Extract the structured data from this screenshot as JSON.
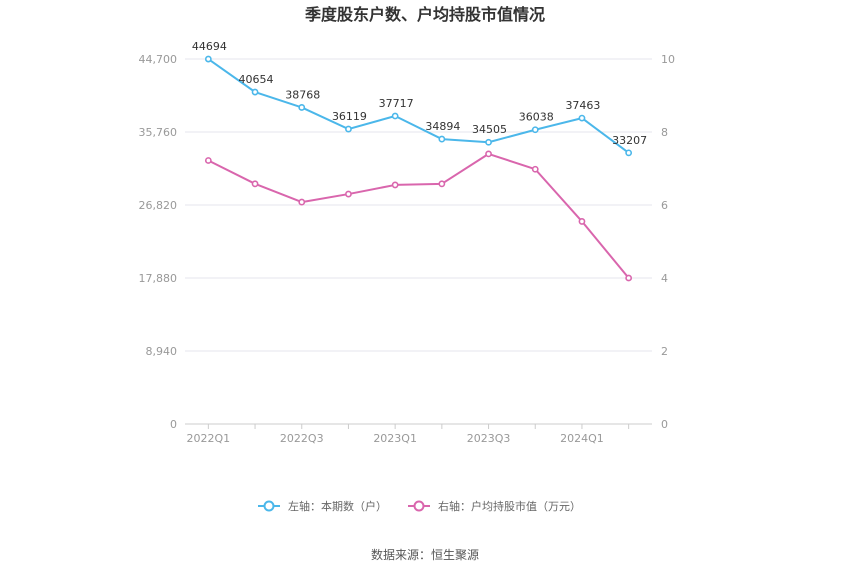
{
  "chart_data": {
    "type": "line",
    "title": "季度股东户数、户均持股市值情况",
    "categories": [
      "2022Q1",
      "2022Q2",
      "2022Q3",
      "2022Q4",
      "2023Q1",
      "2023Q2",
      "2023Q3",
      "2023Q4",
      "2024Q1",
      "2024Q2"
    ],
    "x_tick_labels": [
      "2022Q1",
      "2022Q3",
      "2023Q1",
      "2023Q3",
      "2024Q1"
    ],
    "left_axis": {
      "min": 0,
      "max": 44700,
      "ticks": [
        "0",
        "8,940",
        "17,880",
        "26,820",
        "35,760",
        "44,700"
      ]
    },
    "right_axis": {
      "min": 0,
      "max": 10,
      "ticks": [
        "0",
        "2",
        "4",
        "6",
        "8",
        "10"
      ]
    },
    "series": [
      {
        "name": "左轴：本期数（户）",
        "axis": "left",
        "color": "#4bb7ea",
        "values": [
          44694,
          40654,
          38768,
          36119,
          37717,
          34894,
          34505,
          36038,
          37463,
          33207
        ],
        "labels": [
          "44694",
          "40654",
          "38768",
          "36119",
          "37717",
          "34894",
          "34505",
          "36038",
          "37463",
          "33207"
        ]
      },
      {
        "name": "右轴：户均持股市值（万元）",
        "axis": "right",
        "color": "#d966ad",
        "values": [
          7.22,
          6.58,
          6.08,
          6.3,
          6.55,
          6.58,
          7.4,
          6.98,
          5.55,
          4.0
        ]
      }
    ],
    "legend_position": "bottom",
    "grid": true
  },
  "source_text": "数据来源：恒生聚源"
}
